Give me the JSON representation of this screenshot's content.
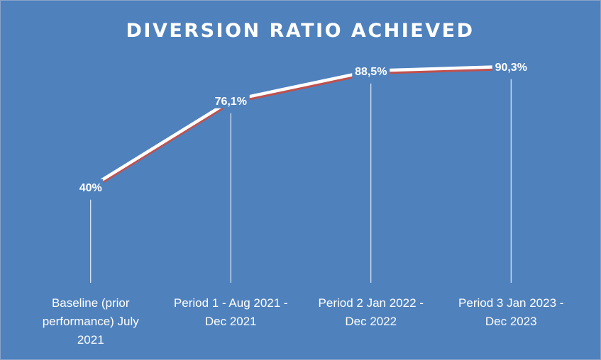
{
  "chart_data": {
    "type": "line",
    "title": "DIVERSION RATIO ACHIEVED",
    "xlabel": "",
    "ylabel": "",
    "categories": [
      [
        "Baseline (prior",
        "performance) July",
        "2021"
      ],
      [
        "Period 1 - Aug 2021 -",
        "Dec 2021"
      ],
      [
        "Period 2 Jan 2022 -",
        "Dec 2022"
      ],
      [
        "Period 3 Jan 2023 -",
        "Dec 2023"
      ]
    ],
    "values": [
      40,
      76.1,
      88.5,
      90.3
    ],
    "data_labels": [
      "40%",
      "76,1%",
      "88,5%",
      "90,3%"
    ],
    "ylim": [
      0,
      100
    ],
    "grid": false,
    "legend": "none",
    "colors": {
      "background": "#4f81bd",
      "line": "#ffffff",
      "line_shadow": "#c0504d",
      "drop_lines": "#ffffff",
      "text": "#ffffff"
    }
  }
}
